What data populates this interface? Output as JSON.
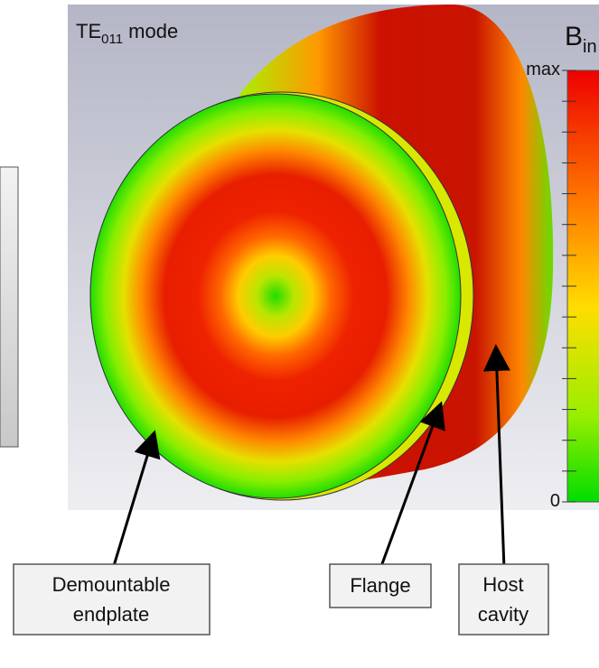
{
  "figure": {
    "mode_label": {
      "main": "TE",
      "sub": "011",
      "rest": " mode"
    },
    "colorbar": {
      "symbol": "B",
      "sub": "in",
      "max": "max",
      "min": "0"
    },
    "callouts": [
      {
        "lines": [
          "Demountable",
          "endplate"
        ]
      },
      {
        "lines": [
          "Flange"
        ]
      },
      {
        "lines": [
          "Host",
          "cavity"
        ]
      }
    ]
  }
}
